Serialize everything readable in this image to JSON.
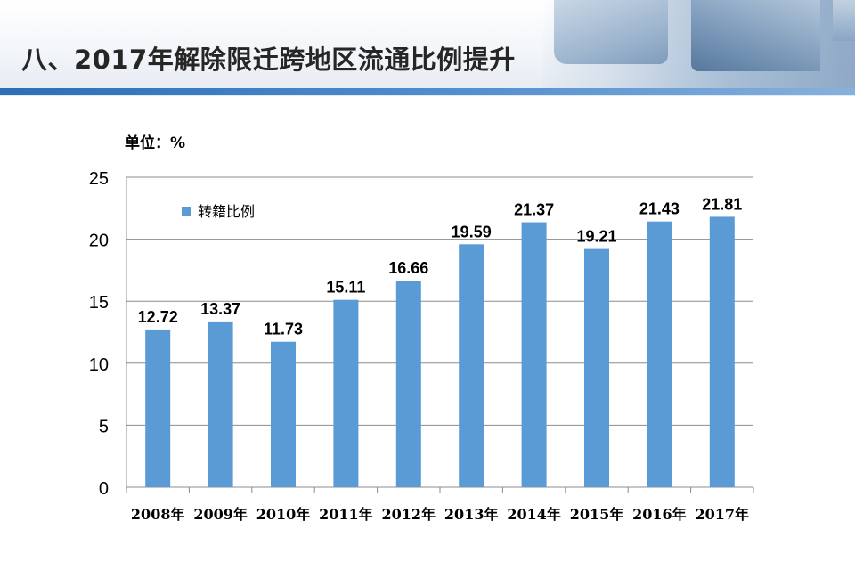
{
  "page": {
    "title": "八、2017年解除限迁跨地区流通比例提升",
    "unit": "单位：%"
  },
  "colors": {
    "bar": "#5b9bd5",
    "header_bar": "#2c6fb7"
  },
  "chart_data": {
    "type": "bar",
    "categories": [
      "2008年",
      "2009年",
      "2010年",
      "2011年",
      "2012年",
      "2013年",
      "2014年",
      "2015年",
      "2016年",
      "2017年"
    ],
    "series": [
      {
        "name": "转籍比例",
        "values": [
          12.72,
          13.37,
          11.73,
          15.11,
          16.66,
          19.59,
          21.37,
          19.21,
          21.43,
          21.81
        ]
      }
    ],
    "value_labels": [
      "12.72",
      "13.37",
      "11.73",
      "15.11",
      "16.66",
      "19.59",
      "21.37",
      "19.21",
      "21.43",
      "21.81"
    ],
    "y_ticks": [
      "0",
      "5",
      "10",
      "15",
      "20",
      "25"
    ],
    "ylim": [
      0,
      25
    ],
    "grid": true,
    "legend": "top-left"
  }
}
